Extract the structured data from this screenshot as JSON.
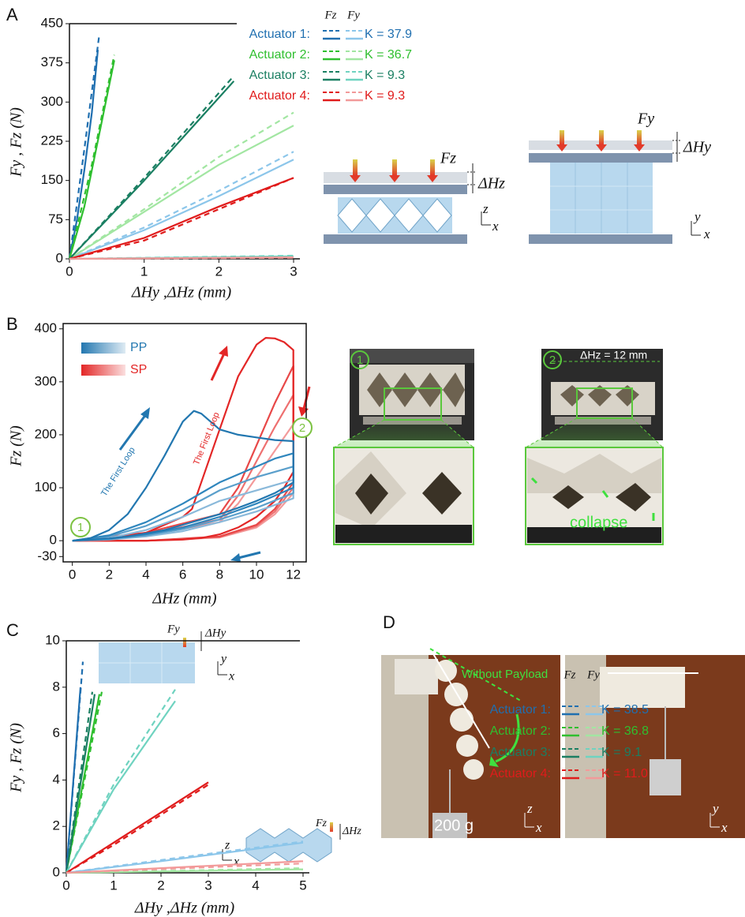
{
  "chart_data": [
    {
      "type": "line",
      "xlabel": "ΔHy ,ΔHz (mm)",
      "ylabel": "Fy , Fz (N)",
      "xlim": [
        0,
        3
      ],
      "ylim": [
        0,
        450
      ],
      "xticks": [
        0,
        1,
        2,
        3
      ],
      "yticks": [
        0,
        75,
        150,
        225,
        300,
        375,
        450
      ],
      "legend": {
        "headers": [
          "Fz",
          "Fy"
        ],
        "entries": [
          {
            "name": "Actuator 1:",
            "label": "K = 37.9",
            "colors": [
              "#1f6fb0",
              "#8cc6ea"
            ]
          },
          {
            "name": "Actuator 2:",
            "label": "K = 36.7",
            "colors": [
              "#2fbf2f",
              "#a2e6a2"
            ]
          },
          {
            "name": "Actuator 3:",
            "label": "K = 9.3",
            "colors": [
              "#1a7f62",
              "#6fd3c0"
            ]
          },
          {
            "name": "Actuator 4:",
            "label": "K = 9.3",
            "colors": [
              "#e01b1b",
              "#f29a9a"
            ]
          }
        ]
      },
      "series": [
        {
          "color": "#1f6fb0",
          "dash": false,
          "x": [
            0,
            0.1,
            0.2,
            0.3,
            0.38
          ],
          "values": [
            0,
            75,
            170,
            280,
            400
          ]
        },
        {
          "color": "#1f6fb0",
          "dash": true,
          "x": [
            0,
            0.2,
            0.4
          ],
          "values": [
            0,
            210,
            430
          ]
        },
        {
          "color": "#8cc6ea",
          "dash": false,
          "x": [
            0,
            1,
            2,
            3
          ],
          "values": [
            0,
            55,
            120,
            190
          ]
        },
        {
          "color": "#8cc6ea",
          "dash": true,
          "x": [
            0,
            1,
            2,
            3
          ],
          "values": [
            0,
            60,
            130,
            205
          ]
        },
        {
          "color": "#2fbf2f",
          "dash": false,
          "x": [
            0,
            0.2,
            0.4,
            0.6
          ],
          "values": [
            0,
            100,
            240,
            380
          ]
        },
        {
          "color": "#2fbf2f",
          "dash": true,
          "x": [
            0,
            0.3,
            0.6
          ],
          "values": [
            0,
            180,
            390
          ]
        },
        {
          "color": "#a2e6a2",
          "dash": false,
          "x": [
            0,
            1,
            2,
            3
          ],
          "values": [
            0,
            90,
            180,
            255
          ]
        },
        {
          "color": "#a2e6a2",
          "dash": true,
          "x": [
            0,
            1,
            2,
            3
          ],
          "values": [
            0,
            95,
            195,
            280
          ]
        },
        {
          "color": "#1a7f62",
          "dash": false,
          "x": [
            0,
            1,
            2.2
          ],
          "values": [
            0,
            150,
            340
          ]
        },
        {
          "color": "#1a7f62",
          "dash": true,
          "x": [
            0,
            1,
            2.2
          ],
          "values": [
            0,
            155,
            350
          ]
        },
        {
          "color": "#6fd3c0",
          "dash": false,
          "x": [
            0,
            3
          ],
          "values": [
            0,
            5
          ]
        },
        {
          "color": "#6fd3c0",
          "dash": true,
          "x": [
            0,
            3
          ],
          "values": [
            0,
            6
          ]
        },
        {
          "color": "#e01b1b",
          "dash": false,
          "x": [
            0,
            1,
            2,
            3
          ],
          "values": [
            0,
            40,
            100,
            155
          ]
        },
        {
          "color": "#e01b1b",
          "dash": true,
          "x": [
            0,
            1,
            2,
            3
          ],
          "values": [
            0,
            35,
            95,
            155
          ]
        },
        {
          "color": "#f29a9a",
          "dash": false,
          "x": [
            0,
            3
          ],
          "values": [
            0,
            3
          ]
        },
        {
          "color": "#f29a9a",
          "dash": true,
          "x": [
            0,
            3
          ],
          "values": [
            0,
            2
          ]
        }
      ]
    },
    {
      "type": "line",
      "xlabel": "ΔHz (mm)",
      "ylabel": "Fz (N)",
      "xlim": [
        -0.5,
        12.7
      ],
      "ylim": [
        -40,
        410
      ],
      "xticks": [
        0,
        2,
        4,
        6,
        8,
        10,
        12
      ],
      "yticks": [
        -30,
        0,
        100,
        200,
        300,
        400
      ],
      "legend": {
        "entries": [
          {
            "name": "PP",
            "color": "#2277b0"
          },
          {
            "name": "SP",
            "color": "#e32626"
          }
        ]
      },
      "annotations": [
        "The First Loop",
        "The First Loop"
      ],
      "markers": [
        "1",
        "2"
      ],
      "series": [
        {
          "color": "#f39a9a",
          "dash": false,
          "x": [
            0,
            4,
            8,
            9,
            10,
            11,
            12,
            12,
            11,
            10,
            8,
            4,
            0
          ],
          "values": [
            0,
            10,
            35,
            70,
            120,
            170,
            220,
            90,
            50,
            25,
            6,
            0,
            0
          ]
        },
        {
          "color": "#ee7070",
          "dash": false,
          "x": [
            0,
            4,
            8,
            9,
            10,
            11,
            12,
            12,
            11,
            10,
            8,
            4,
            0
          ],
          "values": [
            0,
            12,
            40,
            85,
            150,
            215,
            275,
            100,
            55,
            28,
            7,
            0,
            0
          ]
        },
        {
          "color": "#e84848",
          "dash": false,
          "x": [
            0,
            4,
            8,
            9,
            10,
            11,
            12,
            12,
            11,
            10,
            8,
            4,
            0
          ],
          "values": [
            0,
            15,
            50,
            100,
            180,
            260,
            330,
            110,
            60,
            30,
            8,
            0,
            0
          ]
        },
        {
          "color": "#e32626",
          "dash": false,
          "x": [
            0,
            2,
            4,
            6,
            6.5,
            7,
            8,
            9,
            10,
            10.5,
            11,
            11.5,
            12,
            12,
            11.5,
            11,
            10,
            9,
            8,
            7,
            6,
            4,
            2,
            0
          ],
          "values": [
            0,
            5,
            15,
            45,
            60,
            110,
            210,
            310,
            370,
            383,
            382,
            375,
            360,
            130,
            100,
            75,
            45,
            25,
            12,
            5,
            2,
            0,
            0,
            0
          ]
        },
        {
          "color": "#8ab9da",
          "dash": false,
          "x": [
            0,
            2,
            4,
            6,
            8,
            10,
            11,
            12,
            12,
            10,
            8,
            6,
            4,
            2,
            0
          ],
          "values": [
            0,
            5,
            20,
            45,
            75,
            95,
            105,
            115,
            80,
            55,
            35,
            18,
            8,
            2,
            0
          ]
        },
        {
          "color": "#5a9fcb",
          "dash": false,
          "x": [
            0,
            2,
            4,
            6,
            8,
            10,
            11,
            12,
            12,
            10,
            8,
            6,
            4,
            2,
            0
          ],
          "values": [
            0,
            8,
            28,
            58,
            95,
            120,
            130,
            140,
            90,
            62,
            40,
            22,
            10,
            3,
            0
          ]
        },
        {
          "color": "#2f86bd",
          "dash": false,
          "x": [
            0,
            2,
            4,
            6,
            8,
            10,
            11,
            12,
            12,
            10,
            8,
            6,
            4,
            2,
            0
          ],
          "values": [
            0,
            10,
            35,
            70,
            110,
            140,
            155,
            165,
            100,
            70,
            45,
            25,
            12,
            4,
            0
          ]
        },
        {
          "color": "#2277b0",
          "dash": false,
          "x": [
            0,
            1,
            2,
            3,
            4,
            5,
            6,
            6.6,
            7,
            7.5,
            8,
            9,
            10,
            11,
            12,
            12,
            11,
            10,
            9,
            8,
            7,
            6,
            5,
            4,
            3,
            2,
            1,
            0
          ],
          "values": [
            0,
            5,
            20,
            50,
            100,
            160,
            225,
            245,
            240,
            225,
            210,
            200,
            195,
            190,
            188,
            110,
            90,
            75,
            62,
            50,
            40,
            30,
            20,
            14,
            8,
            4,
            2,
            0
          ]
        }
      ]
    },
    {
      "type": "line",
      "xlabel": "ΔHy ,ΔHz (mm)",
      "ylabel": "Fy , Fz (N)",
      "xlim": [
        0,
        5
      ],
      "ylim": [
        0,
        10
      ],
      "xticks": [
        0,
        1,
        2,
        3,
        4,
        5
      ],
      "yticks": [
        0,
        2,
        4,
        6,
        8,
        10
      ],
      "legend": {
        "headers": [
          "Fz",
          "Fy"
        ],
        "entries": [
          {
            "name": "Actuator 1:",
            "label": "K = 38.5",
            "colors": [
              "#1f6fb0",
              "#8cc6ea"
            ]
          },
          {
            "name": "Actuator 2:",
            "label": "K = 36.8",
            "colors": [
              "#2fbf2f",
              "#a2e6a2"
            ]
          },
          {
            "name": "Actuator 3:",
            "label": "K = 9.1",
            "colors": [
              "#1a7f62",
              "#6fd3c0"
            ]
          },
          {
            "name": "Actuator 4:",
            "label": "K = 11.0",
            "colors": [
              "#e01b1b",
              "#f29a9a"
            ]
          }
        ]
      },
      "series": [
        {
          "color": "#1f6fb0",
          "dash": false,
          "x": [
            0,
            0.3
          ],
          "values": [
            0,
            8
          ]
        },
        {
          "color": "#1f6fb0",
          "dash": true,
          "x": [
            0,
            0.35
          ],
          "values": [
            0,
            9.1
          ]
        },
        {
          "color": "#8cc6ea",
          "dash": false,
          "x": [
            0,
            2,
            5
          ],
          "values": [
            0,
            0.5,
            1.3
          ]
        },
        {
          "color": "#8cc6ea",
          "dash": true,
          "x": [
            0,
            2,
            5
          ],
          "values": [
            0,
            0.55,
            1.35
          ]
        },
        {
          "color": "#2fbf2f",
          "dash": false,
          "x": [
            0,
            0.7
          ],
          "values": [
            0,
            7.7
          ]
        },
        {
          "color": "#2fbf2f",
          "dash": true,
          "x": [
            0,
            0.75
          ],
          "values": [
            0,
            7.8
          ]
        },
        {
          "color": "#a2e6a2",
          "dash": false,
          "x": [
            0,
            5
          ],
          "values": [
            0,
            0.15
          ]
        },
        {
          "color": "#a2e6a2",
          "dash": true,
          "x": [
            0,
            5
          ],
          "values": [
            0,
            0.2
          ]
        },
        {
          "color": "#1a7f62",
          "dash": false,
          "x": [
            0,
            0.6
          ],
          "values": [
            0,
            7.7
          ]
        },
        {
          "color": "#1a7f62",
          "dash": true,
          "x": [
            0,
            0.55
          ],
          "values": [
            0,
            7.8
          ]
        },
        {
          "color": "#6fd3c0",
          "dash": false,
          "x": [
            0,
            1,
            2.3
          ],
          "values": [
            0,
            3.6,
            7.4
          ]
        },
        {
          "color": "#6fd3c0",
          "dash": true,
          "x": [
            0,
            1,
            2.3
          ],
          "values": [
            0,
            3.8,
            7.9
          ]
        },
        {
          "color": "#e01b1b",
          "dash": false,
          "x": [
            0,
            1,
            2,
            3
          ],
          "values": [
            0,
            1.3,
            2.6,
            3.9
          ]
        },
        {
          "color": "#e01b1b",
          "dash": true,
          "x": [
            0,
            1,
            2,
            3
          ],
          "values": [
            0,
            1.2,
            2.5,
            3.8
          ]
        },
        {
          "color": "#f29a9a",
          "dash": false,
          "x": [
            0,
            5
          ],
          "values": [
            0,
            0.5
          ]
        },
        {
          "color": "#f29a9a",
          "dash": true,
          "x": [
            0,
            5
          ],
          "values": [
            0,
            0.4
          ]
        }
      ]
    }
  ],
  "figure": {
    "panels": [
      "A",
      "B",
      "C",
      "D"
    ],
    "diagram_a": [
      "Fz",
      "ΔHz",
      "z",
      "x",
      "Fy",
      "ΔHy",
      "y",
      "x"
    ],
    "photos_b": [
      "1",
      "ΔHz = 12 mm",
      "2",
      "collapse"
    ],
    "insets_c": [
      "Fy",
      "ΔHy",
      "y",
      "x",
      "Fz",
      "ΔHz",
      "z",
      "x"
    ],
    "photos_d": [
      "Without Payload",
      "200 g",
      "z",
      "x",
      "y",
      "x"
    ]
  }
}
